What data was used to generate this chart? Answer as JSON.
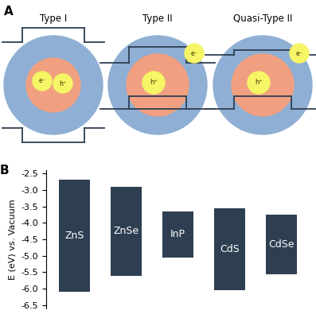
{
  "bar_labels": [
    "ZnS",
    "ZnSe",
    "InP",
    "CdS",
    "CdSe"
  ],
  "bar_tops": [
    -2.7,
    -2.9,
    -3.65,
    -3.55,
    -3.75
  ],
  "bar_bottoms": [
    -6.1,
    -5.6,
    -5.05,
    -6.05,
    -5.55
  ],
  "bar_color": "#2e3f52",
  "ylabel": "E (eV) vs. Vacuum",
  "ylim": [
    -6.6,
    -2.4
  ],
  "yticks": [
    -2.5,
    -3.0,
    -3.5,
    -4.0,
    -4.5,
    -5.0,
    -5.5,
    -6.0,
    -6.5
  ],
  "bg_color": "#ffffff",
  "label_A": "A",
  "label_B": "B",
  "type_labels": [
    "Type I",
    "Type II",
    "Quasi-Type II"
  ],
  "shell_color": "#8fafd4",
  "core_color": "#f0a080",
  "electron_color": "#f5f566",
  "bar_text_color": "#ffffff",
  "bar_text_size": 9,
  "line_color": "#2e3f52",
  "line_width": 1.3
}
